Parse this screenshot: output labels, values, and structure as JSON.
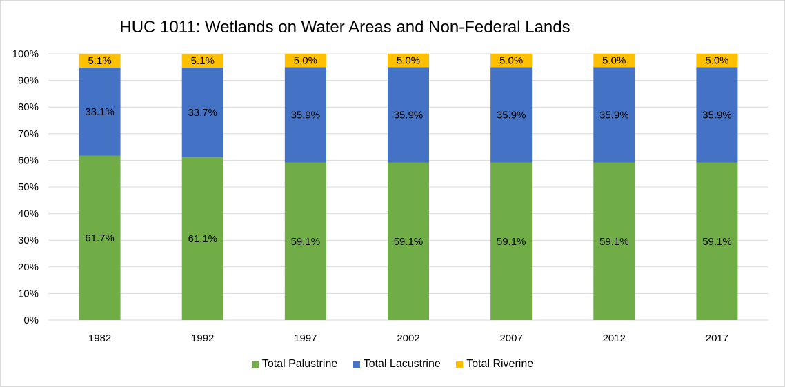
{
  "chart_data": {
    "type": "bar",
    "stacked": true,
    "title": "HUC 1011: Wetlands on Water Areas and Non-Federal Lands",
    "categories": [
      "1982",
      "1992",
      "1997",
      "2002",
      "2007",
      "2012",
      "2017"
    ],
    "series": [
      {
        "name": "Total Palustrine",
        "color": "#70ad47",
        "values": [
          61.7,
          61.1,
          59.1,
          59.1,
          59.1,
          59.1,
          59.1
        ]
      },
      {
        "name": "Total Lacustrine",
        "color": "#4472c4",
        "values": [
          33.1,
          33.7,
          35.9,
          35.9,
          35.9,
          35.9,
          35.9
        ]
      },
      {
        "name": "Total Riverine",
        "color": "#ffc000",
        "values": [
          5.1,
          5.1,
          5.0,
          5.0,
          5.0,
          5.0,
          5.0
        ]
      }
    ],
    "data_labels": [
      [
        "61.7%",
        "61.1%",
        "59.1%",
        "59.1%",
        "59.1%",
        "59.1%",
        "59.1%"
      ],
      [
        "33.1%",
        "33.7%",
        "35.9%",
        "35.9%",
        "35.9%",
        "35.9%",
        "35.9%"
      ],
      [
        "5.1%",
        "5.1%",
        "5.0%",
        "5.0%",
        "5.0%",
        "5.0%",
        "5.0%"
      ]
    ],
    "yticks": [
      "0%",
      "10%",
      "20%",
      "30%",
      "40%",
      "50%",
      "60%",
      "70%",
      "80%",
      "90%",
      "100%"
    ],
    "ylim": [
      0,
      100
    ],
    "grid": true,
    "legend_position": "bottom"
  }
}
